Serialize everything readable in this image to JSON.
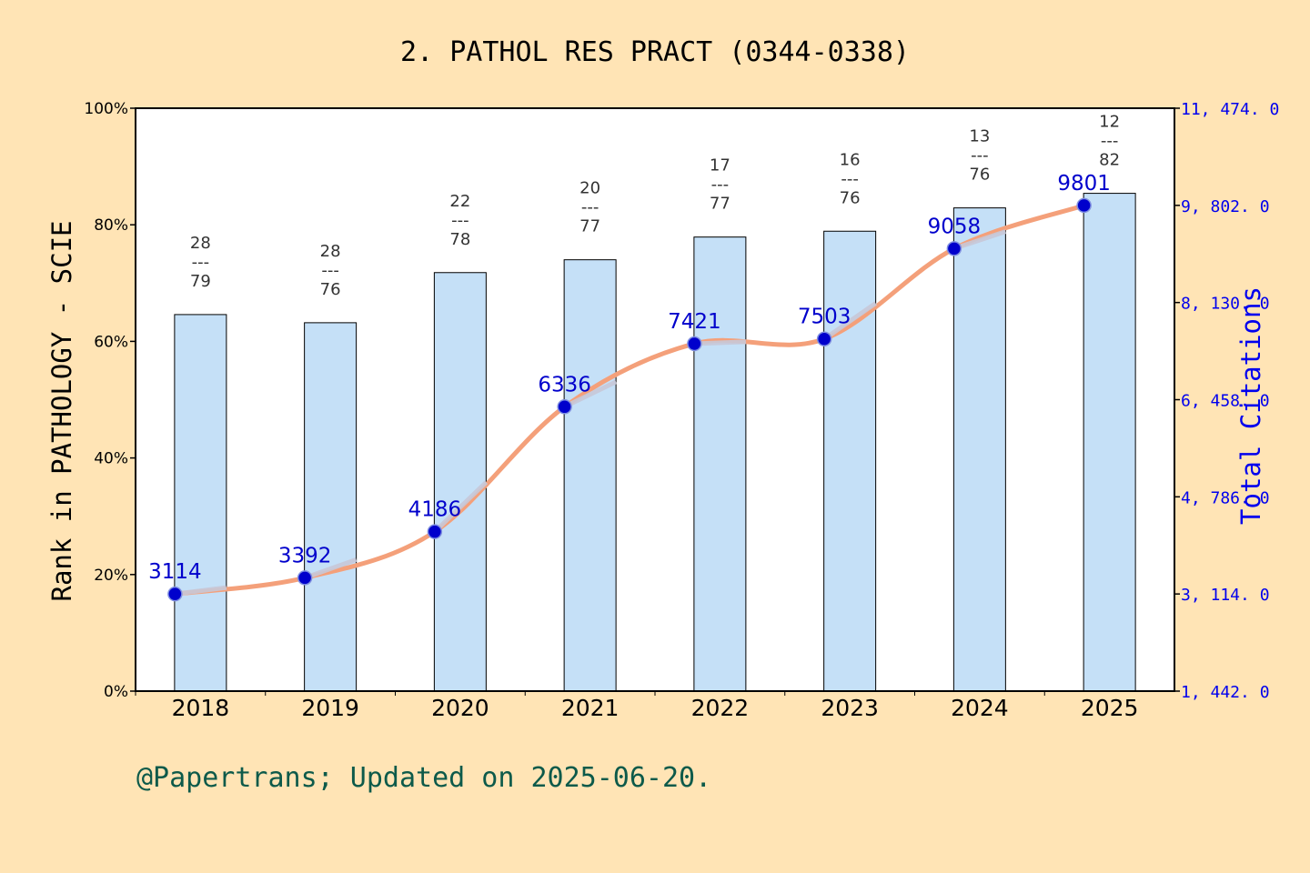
{
  "title": "2. PATHOL RES PRACT (0344-0338)",
  "footer": "@Papertrans; Updated on 2025-06-20.",
  "colors": {
    "background": "#ffe4b5",
    "plot_background": "#ffffff",
    "bar_fill": "#c5e0f7",
    "line": "#f4a07a",
    "line_overlay": "#c8c8d8",
    "marker": "#0000cc",
    "right_axis": "#0000ee",
    "footer_text": "#0d5a4a"
  },
  "chart_data": {
    "type": "bar",
    "categories": [
      "2018",
      "2019",
      "2020",
      "2021",
      "2022",
      "2023",
      "2024",
      "2025"
    ],
    "ylabel": "Rank in PATHOLOGY - SCIE",
    "y2label": "Total Citations",
    "ylim": [
      0,
      100
    ],
    "y_ticks": [
      "0%",
      "20%",
      "40%",
      "60%",
      "80%",
      "100%"
    ],
    "y2lim": [
      1442,
      11474
    ],
    "y2_ticks": [
      "1, 442. 0",
      "3, 114. 0",
      "4, 786. 0",
      "6, 458. 0",
      "8, 130. 0",
      "9, 802. 0",
      "11, 474. 0"
    ],
    "y2_tick_values": [
      1442,
      3114,
      4786,
      6458,
      8130,
      9802,
      11474
    ],
    "grid": false,
    "series": [
      {
        "axis": "left",
        "kind": "bar",
        "values": [
          64.6,
          63.2,
          71.8,
          74.0,
          77.9,
          78.9,
          82.9,
          85.4
        ],
        "ranks": [
          {
            "top": "28",
            "dash": "---",
            "bottom": "79"
          },
          {
            "top": "28",
            "dash": "---",
            "bottom": "76"
          },
          {
            "top": "22",
            "dash": "---",
            "bottom": "78"
          },
          {
            "top": "20",
            "dash": "---",
            "bottom": "77"
          },
          {
            "top": "17",
            "dash": "---",
            "bottom": "77"
          },
          {
            "top": "16",
            "dash": "---",
            "bottom": "76"
          },
          {
            "top": "13",
            "dash": "---",
            "bottom": "76"
          },
          {
            "top": "12",
            "dash": "---",
            "bottom": "82"
          }
        ]
      },
      {
        "axis": "right",
        "kind": "line",
        "values": [
          3114,
          3392,
          4186,
          6336,
          7421,
          7503,
          9058,
          9801
        ],
        "labels": [
          "3114",
          "3392",
          "4186",
          "6336",
          "7421",
          "7503",
          "9058",
          "9801"
        ]
      }
    ]
  }
}
